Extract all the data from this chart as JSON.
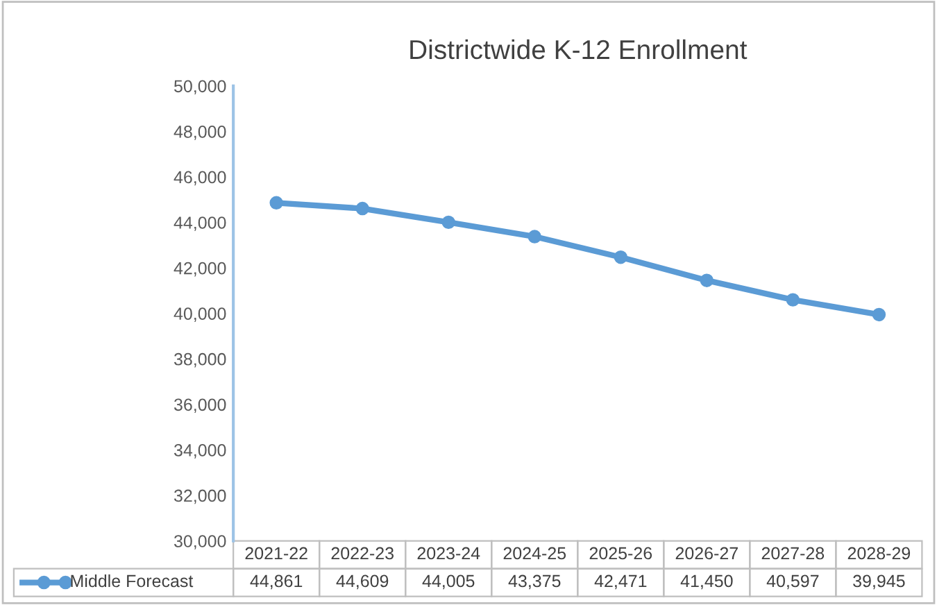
{
  "chart_data": {
    "type": "line",
    "title": "Districtwide K-12 Enrollment",
    "categories": [
      "2021-22",
      "2022-23",
      "2023-24",
      "2024-25",
      "2025-26",
      "2026-27",
      "2027-28",
      "2028-29"
    ],
    "series": [
      {
        "name": "Middle Forecast",
        "color": "#5b9bd5",
        "values": [
          44861,
          44609,
          44005,
          43375,
          42471,
          41450,
          40597,
          39945
        ],
        "value_labels": [
          "44,861",
          "44,609",
          "44,005",
          "43,375",
          "42,471",
          "41,450",
          "40,597",
          "39,945"
        ]
      }
    ],
    "ylim": [
      30000,
      50000
    ],
    "yticks": [
      {
        "value": 30000,
        "label": "30,000"
      },
      {
        "value": 32000,
        "label": "32,000"
      },
      {
        "value": 34000,
        "label": "34,000"
      },
      {
        "value": 36000,
        "label": "36,000"
      },
      {
        "value": 38000,
        "label": "38,000"
      },
      {
        "value": 40000,
        "label": "40,000"
      },
      {
        "value": 42000,
        "label": "42,000"
      },
      {
        "value": 44000,
        "label": "44,000"
      },
      {
        "value": 46000,
        "label": "46,000"
      },
      {
        "value": 48000,
        "label": "48,000"
      },
      {
        "value": 50000,
        "label": "50,000"
      }
    ],
    "grid": false,
    "marker": "circle",
    "line_style": "solid"
  }
}
